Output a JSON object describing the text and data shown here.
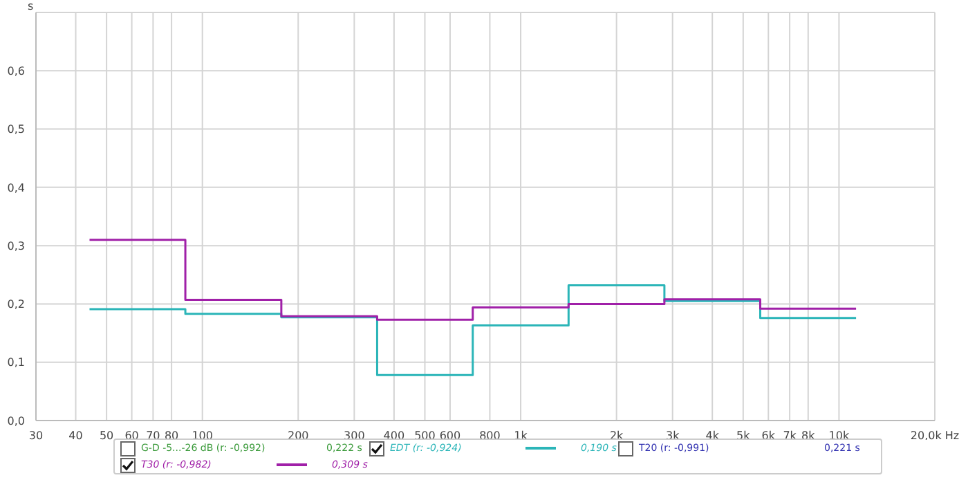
{
  "chart_data": {
    "type": "step",
    "ylabel": "s",
    "log": "x",
    "grid": true,
    "legend": "bottom",
    "marker": "none",
    "line_style": "solid",
    "xlim": [
      30,
      20000
    ],
    "xticks": [
      30,
      40,
      50,
      60,
      70,
      80,
      100,
      200,
      300,
      400,
      500,
      600,
      800,
      {
        "value": 1000,
        "label": "1k"
      },
      {
        "value": 2000,
        "label": "2k"
      },
      {
        "value": 3000,
        "label": "3k"
      },
      {
        "value": 4000,
        "label": "4k"
      },
      {
        "value": 5000,
        "label": "5k"
      },
      {
        "value": 6000,
        "label": "6k"
      },
      {
        "value": 7000,
        "label": "7k"
      },
      {
        "value": 8000,
        "label": "8k"
      },
      {
        "value": 10000,
        "label": "10k"
      },
      {
        "value": 20000,
        "label": "20,0k Hz"
      }
    ],
    "ylim": [
      0,
      0.7
    ],
    "yticks": [
      {
        "value": 0,
        "label": "0,0"
      },
      {
        "value": 0.1,
        "label": "0,1"
      },
      {
        "value": 0.2,
        "label": "0,2"
      },
      {
        "value": 0.3,
        "label": "0,3"
      },
      {
        "value": 0.4,
        "label": "0,4"
      },
      {
        "value": 0.5,
        "label": "0,5"
      },
      {
        "value": 0.6,
        "label": "0,6"
      }
    ],
    "x": [
      44.2,
      88.4,
      177,
      354,
      707,
      1414,
      2828,
      5657,
      11314
    ],
    "series": [
      {
        "name": "EDT (r: -0,924)",
        "color": "#2bb5b8",
        "values": [
          0.191,
          0.183,
          0.177,
          0.078,
          0.163,
          0.232,
          0.205,
          0.176,
          0.176
        ]
      },
      {
        "name": "T30 (r: -0,982)",
        "color": "#a020a8",
        "values": [
          0.31,
          0.207,
          0.179,
          0.173,
          0.194,
          0.2,
          0.208,
          0.192,
          0.192
        ]
      }
    ],
    "annotations": [
      "G-D -5...-26 dB (r: -0,992)",
      "0,222 s",
      "0,190 s",
      "T20 (r: -0,991)",
      "0,221 s",
      "0,309 s"
    ]
  }
}
